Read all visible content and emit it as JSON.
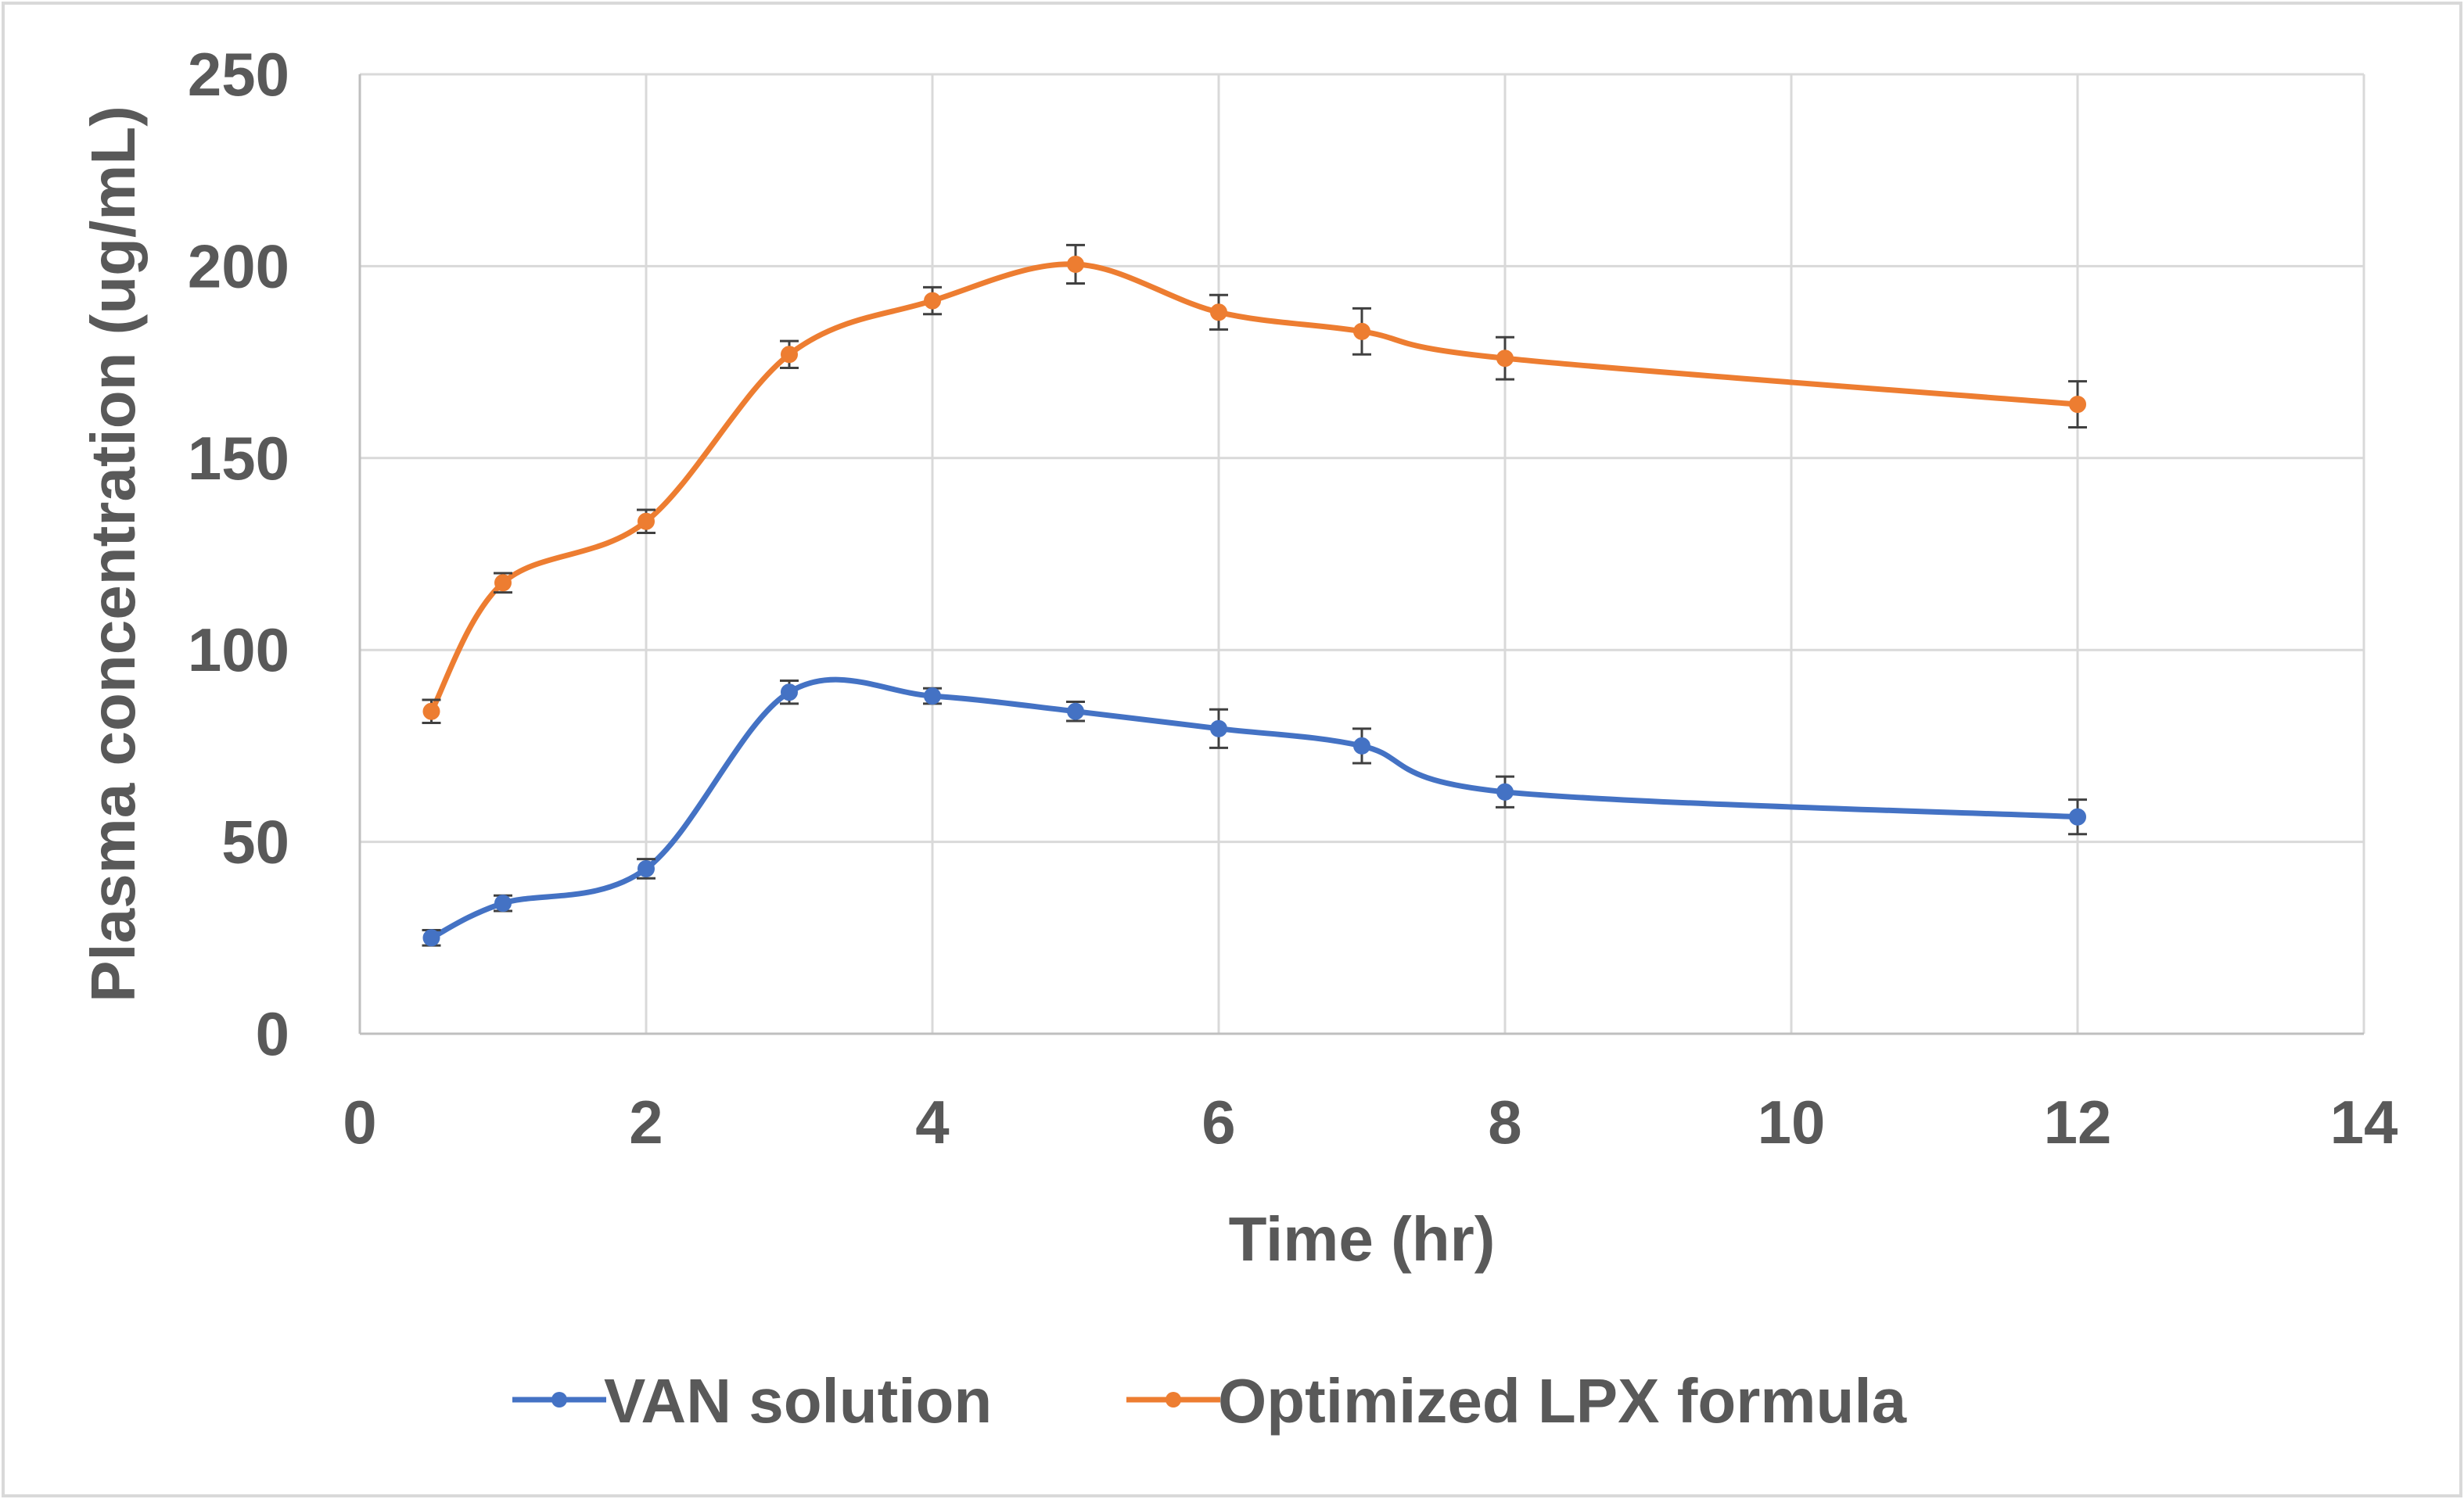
{
  "chart_data": {
    "type": "line",
    "title": "",
    "xlabel": "Time (hr)",
    "ylabel": "Plasma concentration (ug/mL)",
    "xlim": [
      0,
      14
    ],
    "ylim": [
      0,
      250
    ],
    "xticks": [
      0,
      2,
      4,
      6,
      8,
      10,
      12,
      14
    ],
    "yticks": [
      0,
      50,
      100,
      150,
      200,
      250
    ],
    "grid": true,
    "legend_position": "bottom",
    "series": [
      {
        "name": "VAN solution",
        "color": "#4472C4",
        "x": [
          0.5,
          1,
          2,
          3,
          4,
          5,
          6,
          7,
          8,
          12
        ],
        "y": [
          25,
          34,
          43,
          89,
          88,
          84,
          79.5,
          75,
          63,
          56.5
        ],
        "err": [
          2,
          2,
          2.5,
          3,
          2,
          2.5,
          5,
          4.5,
          4,
          4.5
        ]
      },
      {
        "name": "Optimized LPX formula",
        "color": "#ED7D31",
        "x": [
          0.5,
          1,
          2,
          3,
          4,
          5,
          6,
          7,
          8,
          12
        ],
        "y": [
          84,
          117.5,
          133.5,
          177,
          191,
          200.5,
          188,
          183,
          176,
          164
        ],
        "err": [
          3,
          2.5,
          3,
          3.5,
          3.5,
          5,
          4.5,
          6,
          5.5,
          6
        ]
      }
    ]
  }
}
